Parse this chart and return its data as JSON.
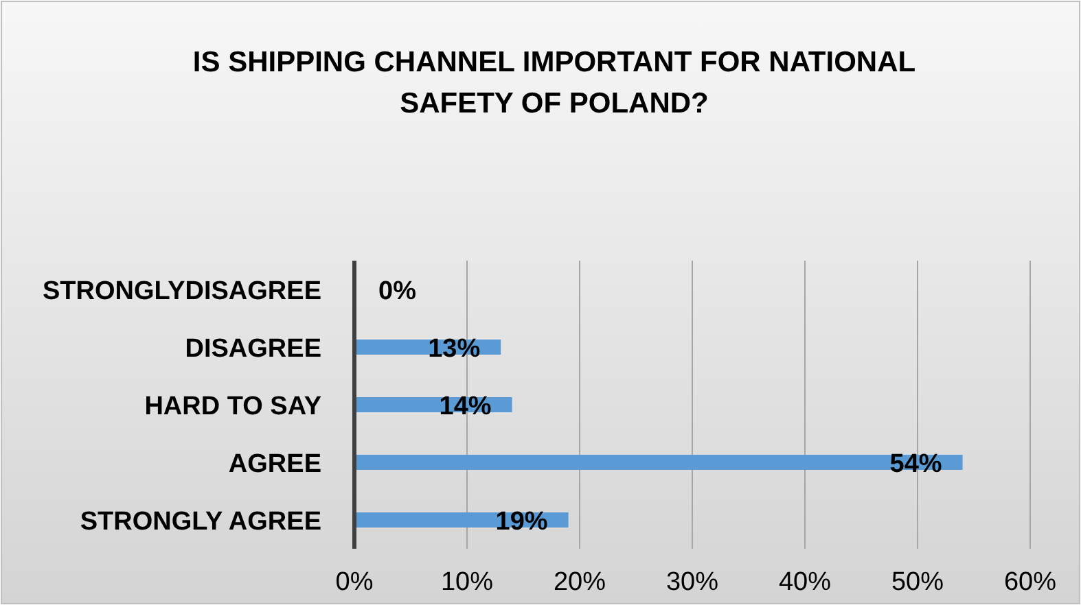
{
  "chart_data": {
    "type": "bar",
    "orientation": "horizontal",
    "title": "IS SHIPPING CHANNEL IMPORTANT FOR NATIONAL SAFETY OF POLAND?",
    "categories": [
      "STRONGLYDISAGREE",
      "DISAGREE",
      "HARD TO SAY",
      "AGREE",
      "STRONGLY AGREE"
    ],
    "values": [
      0,
      13,
      14,
      54,
      19
    ],
    "value_labels": [
      "0%",
      "13%",
      "14%",
      "54%",
      "19%"
    ],
    "color": "#5b9bd5",
    "xlim": [
      0,
      60
    ],
    "xticks": [
      {
        "value": 0,
        "label": "0%"
      },
      {
        "value": 10,
        "label": "10%"
      },
      {
        "value": 20,
        "label": "20%"
      },
      {
        "value": 30,
        "label": "30%"
      },
      {
        "value": 40,
        "label": "40%"
      },
      {
        "value": 50,
        "label": "50%"
      },
      {
        "value": 60,
        "label": "60%"
      }
    ],
    "grid": "x"
  }
}
